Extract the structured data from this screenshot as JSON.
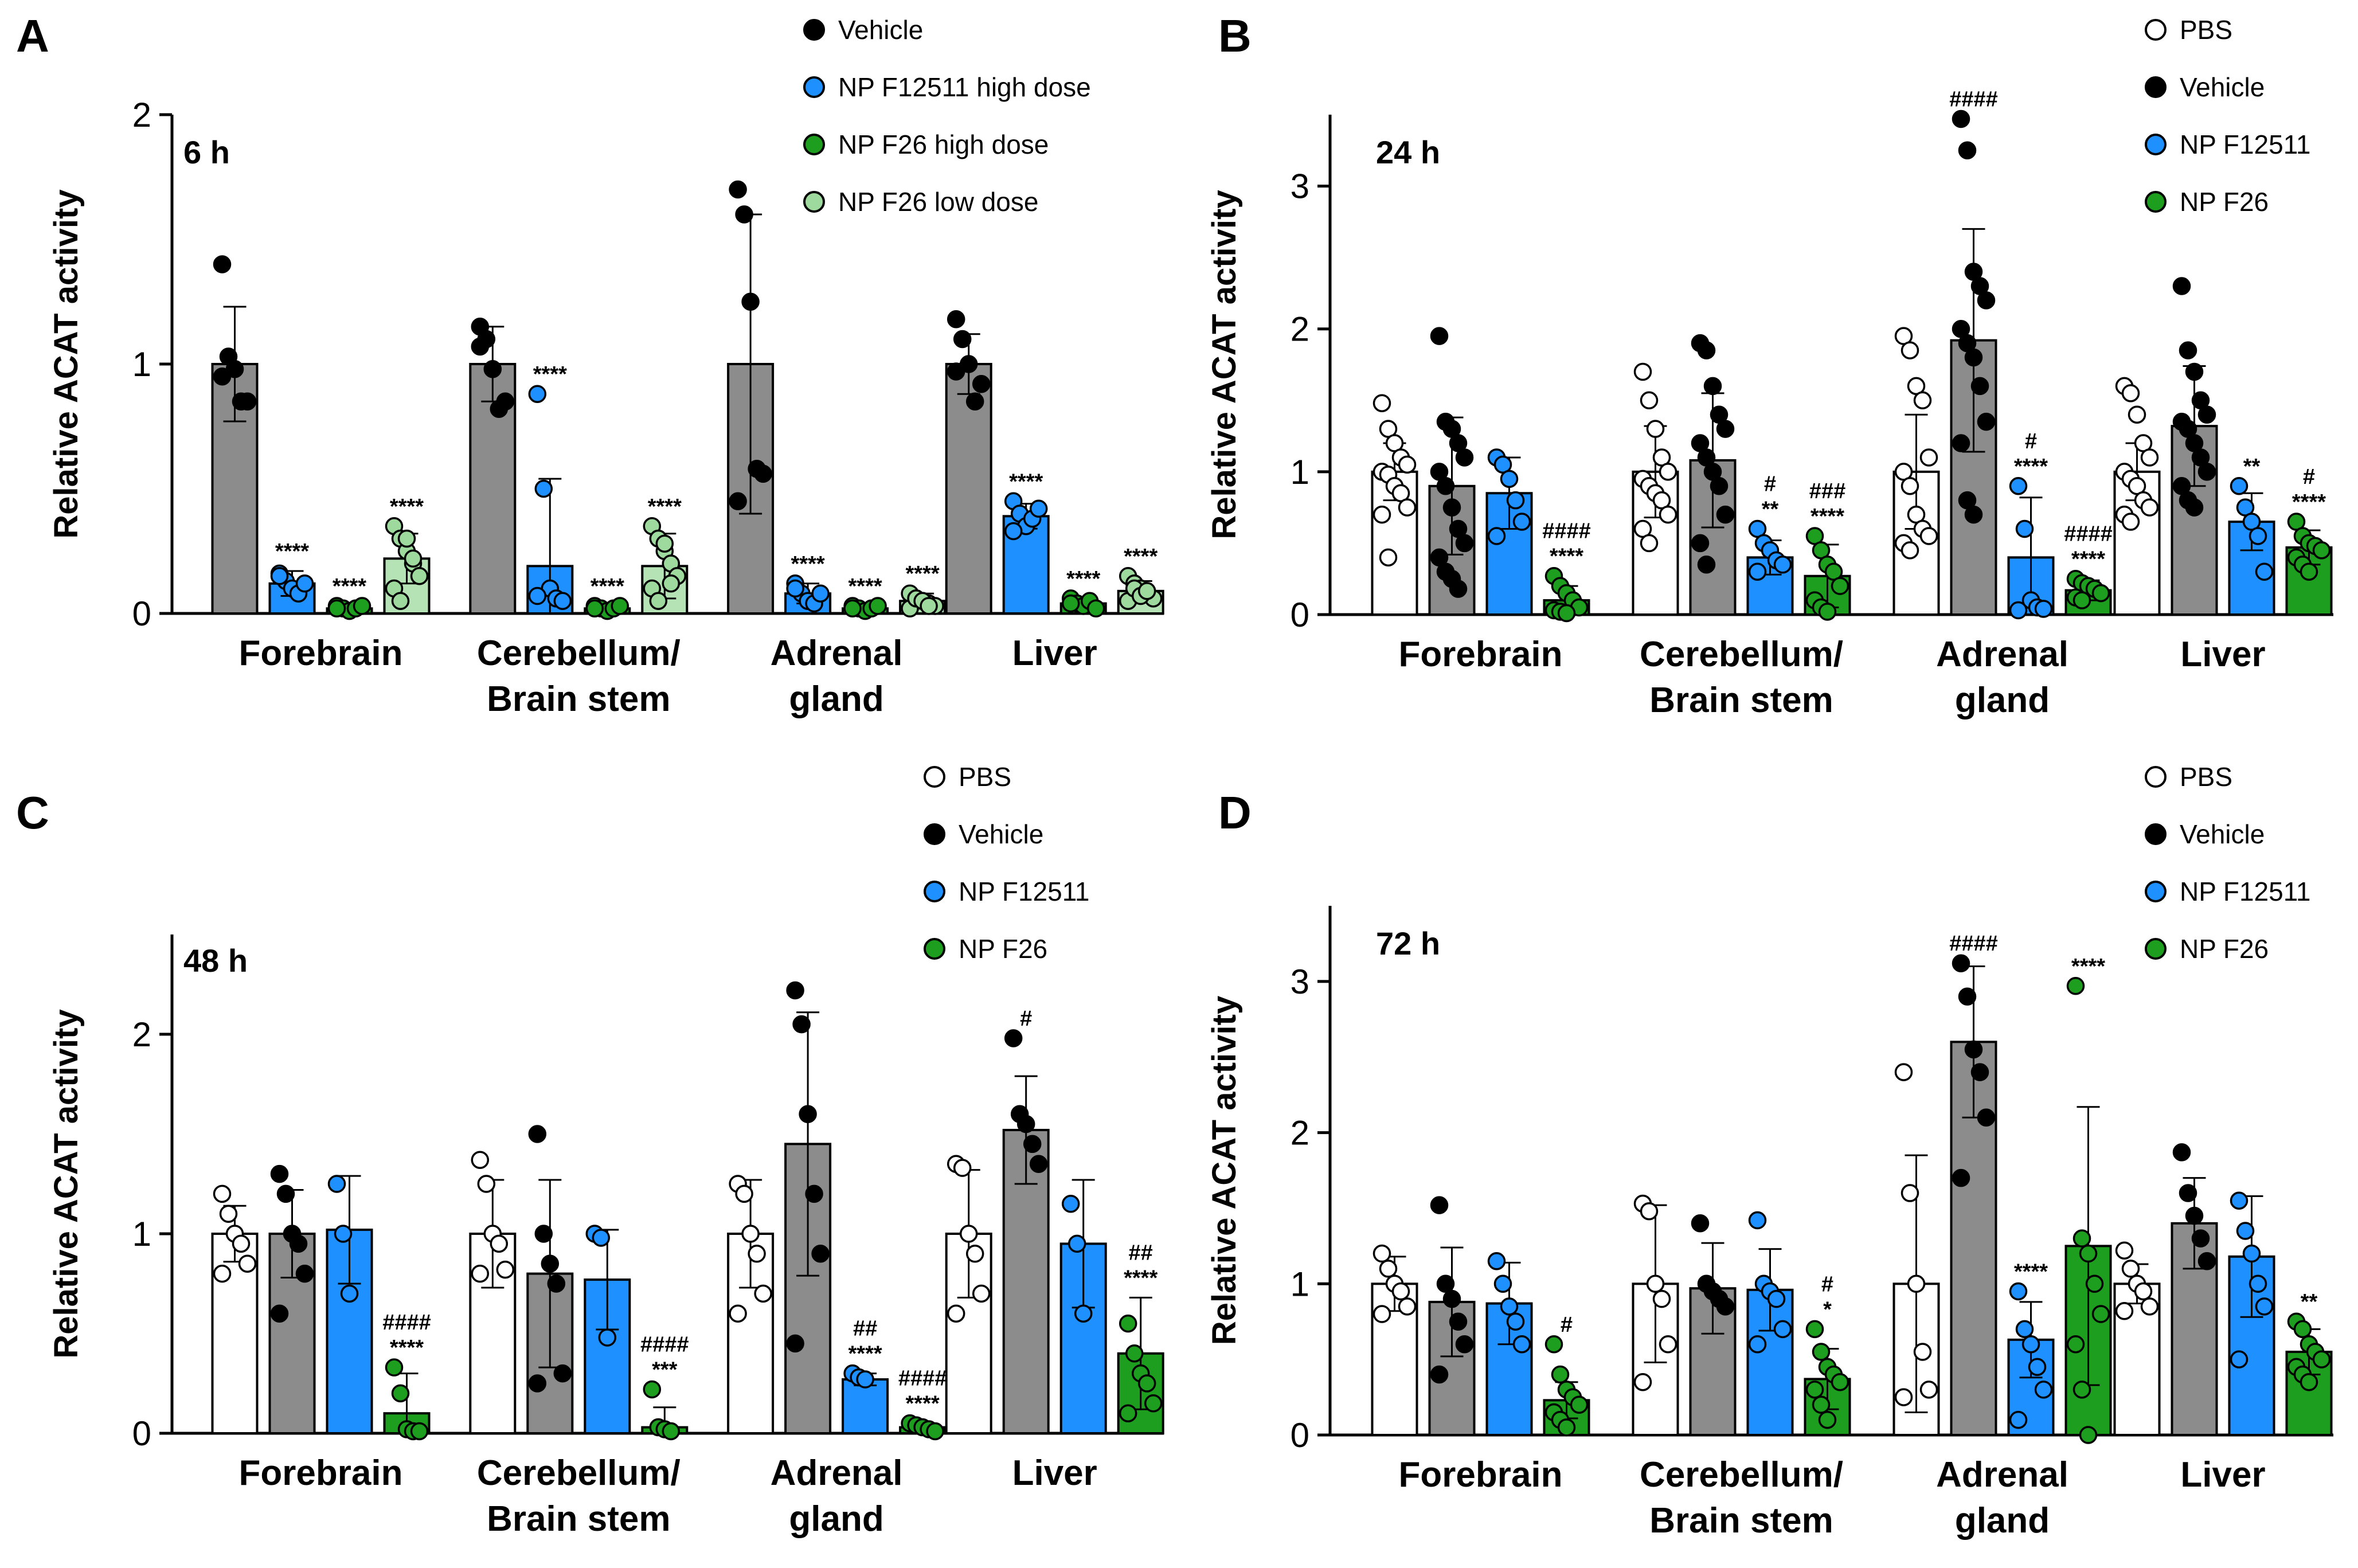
{
  "chart_data": [
    {
      "type": "bar",
      "panel": "A",
      "time_label": "6 h",
      "ylabel": "Relative ACAT activity",
      "ylim": [
        0,
        2
      ],
      "yticks": [
        "0",
        "1",
        "2"
      ],
      "categories": [
        [
          "Forebrain"
        ],
        [
          "Cerebellum/",
          "Brain stem"
        ],
        [
          "Adrenal",
          "gland"
        ],
        [
          "Liver"
        ]
      ],
      "series": [
        {
          "name": "Vehicle",
          "color": "#8c8c8c",
          "marker": "#000000",
          "values": [
            1.0,
            1.0,
            1.0,
            1.0
          ],
          "err": [
            0.23,
            0.15,
            0.6,
            0.12
          ],
          "points": [
            [
              1.4,
              1.03,
              0.98,
              0.85,
              0.85,
              0.95
            ],
            [
              1.15,
              1.1,
              0.98,
              0.82,
              0.85,
              1.07
            ],
            [
              1.7,
              1.6,
              1.25,
              0.58,
              0.56,
              0.45
            ],
            [
              1.18,
              1.1,
              1.0,
              0.85,
              0.92,
              0.97
            ]
          ],
          "sig": [
            "",
            "",
            "",
            ""
          ]
        },
        {
          "name": "NP F12511 high dose",
          "color": "#1e90ff",
          "marker": "#1e90ff",
          "values": [
            0.12,
            0.19,
            0.08,
            0.39
          ],
          "err": [
            0.05,
            0.35,
            0.04,
            0.05
          ],
          "points": [
            [
              0.16,
              0.13,
              0.1,
              0.08,
              0.12,
              0.15
            ],
            [
              0.88,
              0.5,
              0.1,
              0.06,
              0.05,
              0.07
            ],
            [
              0.12,
              0.08,
              0.05,
              0.04,
              0.08,
              0.1
            ],
            [
              0.45,
              0.4,
              0.35,
              0.38,
              0.42,
              0.33
            ]
          ],
          "sig": [
            "****",
            "****",
            "****",
            "****"
          ]
        },
        {
          "name": "NP F26 high dose",
          "color": "#1e9e1e",
          "marker": "#1e9e1e",
          "values": [
            0.02,
            0.02,
            0.02,
            0.04
          ],
          "err": [
            0.01,
            0.01,
            0.01,
            0.02
          ],
          "points": [
            [
              0.03,
              0.02,
              0.01,
              0.02,
              0.03,
              0.02
            ],
            [
              0.03,
              0.02,
              0.01,
              0.02,
              0.03,
              0.02
            ],
            [
              0.03,
              0.02,
              0.01,
              0.02,
              0.03,
              0.02
            ],
            [
              0.06,
              0.04,
              0.03,
              0.05,
              0.02,
              0.04
            ]
          ],
          "sig": [
            "****",
            "****",
            "****",
            "****"
          ]
        },
        {
          "name": "NP F26 low dose",
          "color": "#b6e3b6",
          "marker": "#9ed99e",
          "values": [
            0.22,
            0.19,
            0.05,
            0.09
          ],
          "err": [
            0.1,
            0.13,
            0.03,
            0.04
          ],
          "points": [
            [
              0.35,
              0.3,
              0.25,
              0.2,
              0.15,
              0.1,
              0.05,
              0.3,
              0.22
            ],
            [
              0.35,
              0.3,
              0.25,
              0.2,
              0.15,
              0.1,
              0.05,
              0.28,
              0.12
            ],
            [
              0.08,
              0.06,
              0.05,
              0.04,
              0.03,
              0.02,
              0.06,
              0.05,
              0.03
            ],
            [
              0.15,
              0.12,
              0.1,
              0.08,
              0.06,
              0.05,
              0.1,
              0.07,
              0.09
            ]
          ],
          "sig": [
            "****",
            "****",
            "****",
            "****"
          ]
        }
      ]
    },
    {
      "type": "bar",
      "panel": "B",
      "time_label": "24 h",
      "ylabel": "Relative ACAT activity",
      "ylim": [
        0,
        3.5
      ],
      "yticks": [
        "0",
        "1",
        "2",
        "3"
      ],
      "categories": [
        [
          "Forebrain"
        ],
        [
          "Cerebellum/",
          "Brain stem"
        ],
        [
          "Adrenal",
          "gland"
        ],
        [
          "Liver"
        ]
      ],
      "series": [
        {
          "name": "PBS",
          "color": "#ffffff",
          "marker": "#ffffff",
          "values": [
            1.0,
            1.0,
            1.0,
            1.0
          ],
          "err": [
            0.2,
            0.32,
            0.4,
            0.2
          ],
          "points": [
            [
              1.48,
              1.3,
              1.2,
              1.1,
              1.05,
              1.0,
              0.98,
              0.9,
              0.85,
              0.75,
              0.7,
              0.4
            ],
            [
              1.7,
              1.5,
              1.3,
              1.1,
              1.0,
              0.95,
              0.9,
              0.85,
              0.8,
              0.7,
              0.6,
              0.5
            ],
            [
              1.95,
              1.85,
              1.6,
              1.5,
              1.1,
              1.0,
              0.9,
              0.7,
              0.6,
              0.55,
              0.5,
              0.45
            ],
            [
              1.6,
              1.55,
              1.4,
              1.2,
              1.1,
              1.0,
              0.95,
              0.9,
              0.8,
              0.75,
              0.7,
              0.65
            ]
          ],
          "sig": [
            "",
            "",
            "",
            ""
          ]
        },
        {
          "name": "Vehicle",
          "color": "#8c8c8c",
          "marker": "#000000",
          "values": [
            0.9,
            1.08,
            1.92,
            1.32
          ],
          "err": [
            0.48,
            0.47,
            0.78,
            0.42
          ],
          "points": [
            [
              1.95,
              1.35,
              1.3,
              1.2,
              1.1,
              1.0,
              0.9,
              0.75,
              0.6,
              0.5,
              0.4,
              0.3,
              0.25,
              0.18
            ],
            [
              1.9,
              1.85,
              1.6,
              1.4,
              1.3,
              1.2,
              1.1,
              1.0,
              0.9,
              0.7,
              0.5,
              0.35
            ],
            [
              3.47,
              3.25,
              2.4,
              2.3,
              2.2,
              2.0,
              1.9,
              1.8,
              1.6,
              1.35,
              1.2,
              0.8,
              0.7
            ],
            [
              2.3,
              1.85,
              1.7,
              1.5,
              1.4,
              1.35,
              1.3,
              1.2,
              1.1,
              1.0,
              0.9,
              0.8,
              0.75
            ]
          ],
          "sig": [
            "",
            "",
            "####",
            ""
          ]
        },
        {
          "name": "NP F12511",
          "color": "#1e90ff",
          "marker": "#1e90ff",
          "values": [
            0.85,
            0.4,
            0.4,
            0.65
          ],
          "err": [
            0.25,
            0.12,
            0.42,
            0.2
          ],
          "points": [
            [
              1.1,
              1.05,
              0.95,
              0.8,
              0.65,
              0.55
            ],
            [
              0.6,
              0.5,
              0.45,
              0.38,
              0.35,
              0.3
            ],
            [
              0.9,
              0.6,
              0.1,
              0.05,
              0.04,
              0.03
            ],
            [
              0.9,
              0.75,
              0.65,
              0.55,
              0.3
            ]
          ],
          "sig": [
            "",
            "#\n**",
            "#\n****",
            "**"
          ]
        },
        {
          "name": "NP F26",
          "color": "#1e9e1e",
          "marker": "#1e9e1e",
          "values": [
            0.1,
            0.27,
            0.17,
            0.47
          ],
          "err": [
            0.1,
            0.22,
            0.07,
            0.12
          ],
          "points": [
            [
              0.27,
              0.2,
              0.15,
              0.1,
              0.05,
              0.03,
              0.02,
              0.01
            ],
            [
              0.55,
              0.45,
              0.35,
              0.3,
              0.2,
              0.1,
              0.05,
              0.02
            ],
            [
              0.25,
              0.22,
              0.2,
              0.18,
              0.15,
              0.12,
              0.1
            ],
            [
              0.65,
              0.55,
              0.5,
              0.48,
              0.45,
              0.4,
              0.35,
              0.3
            ]
          ],
          "sig": [
            "####\n****",
            "###\n****",
            "####\n****",
            "#\n****"
          ]
        }
      ]
    },
    {
      "type": "bar",
      "panel": "C",
      "time_label": "48 h",
      "ylabel": "Relative ACAT activity",
      "ylim": [
        0,
        2.5
      ],
      "yticks": [
        "0",
        "1",
        "2"
      ],
      "categories": [
        [
          "Forebrain"
        ],
        [
          "Cerebellum/",
          "Brain stem"
        ],
        [
          "Adrenal",
          "gland"
        ],
        [
          "Liver"
        ]
      ],
      "series": [
        {
          "name": "PBS",
          "color": "#ffffff",
          "marker": "#ffffff",
          "values": [
            1.0,
            1.0,
            1.0,
            1.0
          ],
          "err": [
            0.14,
            0.27,
            0.27,
            0.32
          ],
          "points": [
            [
              1.2,
              1.1,
              1.0,
              0.95,
              0.85,
              0.8
            ],
            [
              1.37,
              1.25,
              1.0,
              0.95,
              0.82,
              0.8
            ],
            [
              1.25,
              1.2,
              1.0,
              0.9,
              0.7,
              0.6
            ],
            [
              1.35,
              1.33,
              1.0,
              0.9,
              0.7,
              0.6
            ]
          ],
          "sig": [
            "",
            "",
            "",
            ""
          ]
        },
        {
          "name": "Vehicle",
          "color": "#8c8c8c",
          "marker": "#000000",
          "values": [
            1.0,
            0.8,
            1.45,
            1.52
          ],
          "err": [
            0.22,
            0.47,
            0.66,
            0.27
          ],
          "points": [
            [
              1.3,
              1.2,
              1.0,
              0.95,
              0.8,
              0.6
            ],
            [
              1.5,
              1.0,
              0.85,
              0.75,
              0.3,
              0.25
            ],
            [
              2.22,
              2.05,
              1.6,
              1.2,
              0.9,
              0.45
            ],
            [
              1.98,
              1.6,
              1.55,
              1.45,
              1.35
            ]
          ],
          "sig": [
            "",
            "",
            "",
            "#"
          ]
        },
        {
          "name": "NP F12511",
          "color": "#1e90ff",
          "marker": "#1e90ff",
          "values": [
            1.02,
            0.77,
            0.27,
            0.95
          ],
          "err": [
            0.27,
            0.25,
            0.03,
            0.32
          ],
          "points": [
            [
              1.25,
              1.0,
              0.7
            ],
            [
              1.0,
              0.98,
              0.48
            ],
            [
              0.3,
              0.28,
              0.27
            ],
            [
              1.15,
              0.95,
              0.6
            ]
          ],
          "sig": [
            "",
            "",
            "##\n****",
            ""
          ]
        },
        {
          "name": "NP F26",
          "color": "#1e9e1e",
          "marker": "#1e9e1e",
          "values": [
            0.1,
            0.03,
            0.03,
            0.4
          ],
          "err": [
            0.2,
            0.1,
            0.02,
            0.28
          ],
          "points": [
            [
              0.33,
              0.2,
              0.02,
              0.01,
              0.01
            ],
            [
              0.22,
              0.03,
              0.02,
              0.01
            ],
            [
              0.05,
              0.04,
              0.03,
              0.02,
              0.01
            ],
            [
              0.55,
              0.4,
              0.3,
              0.25,
              0.15,
              0.1
            ]
          ],
          "sig": [
            "####\n****",
            "####\n***",
            "####\n****",
            "##\n****"
          ]
        }
      ]
    },
    {
      "type": "bar",
      "panel": "D",
      "time_label": "72 h",
      "ylabel": "Relative ACAT activity",
      "ylim": [
        0,
        3.5
      ],
      "yticks": [
        "0",
        "1",
        "2",
        "3"
      ],
      "categories": [
        [
          "Forebrain"
        ],
        [
          "Cerebellum/",
          "Brain stem"
        ],
        [
          "Adrenal",
          "gland"
        ],
        [
          "Liver"
        ]
      ],
      "series": [
        {
          "name": "PBS",
          "color": "#ffffff",
          "marker": "#ffffff",
          "values": [
            1.0,
            1.0,
            1.0,
            1.0
          ],
          "err": [
            0.18,
            0.52,
            0.85,
            0.13
          ],
          "points": [
            [
              1.2,
              1.1,
              1.0,
              0.95,
              0.85,
              0.8
            ],
            [
              1.53,
              1.48,
              1.0,
              0.9,
              0.6,
              0.35
            ],
            [
              2.4,
              1.6,
              1.0,
              0.55,
              0.3,
              0.25
            ],
            [
              1.22,
              1.1,
              1.0,
              0.95,
              0.85,
              0.82
            ]
          ],
          "sig": [
            "",
            "",
            "",
            ""
          ]
        },
        {
          "name": "Vehicle",
          "color": "#8c8c8c",
          "marker": "#000000",
          "values": [
            0.88,
            0.97,
            2.6,
            1.4
          ],
          "err": [
            0.36,
            0.3,
            0.5,
            0.3
          ],
          "points": [
            [
              1.52,
              1.0,
              0.9,
              0.75,
              0.6,
              0.4
            ],
            [
              1.4,
              1.0,
              0.95,
              0.9,
              0.85
            ],
            [
              3.12,
              2.9,
              2.55,
              2.4,
              2.1,
              1.7
            ],
            [
              1.87,
              1.6,
              1.45,
              1.3,
              1.15
            ]
          ],
          "sig": [
            "",
            "",
            "####",
            ""
          ]
        },
        {
          "name": "NP F12511",
          "color": "#1e90ff",
          "marker": "#1e90ff",
          "values": [
            0.87,
            0.96,
            0.63,
            1.18
          ],
          "err": [
            0.27,
            0.27,
            0.25,
            0.4
          ],
          "points": [
            [
              1.15,
              1.0,
              0.85,
              0.75,
              0.6
            ],
            [
              1.42,
              1.0,
              0.95,
              0.9,
              0.7,
              0.6
            ],
            [
              0.95,
              0.7,
              0.6,
              0.45,
              0.3,
              0.1
            ],
            [
              1.55,
              1.35,
              1.2,
              1.0,
              0.85,
              0.5
            ]
          ],
          "sig": [
            "",
            "",
            "****",
            ""
          ]
        },
        {
          "name": "NP F26",
          "color": "#1e9e1e",
          "marker": "#1e9e1e",
          "values": [
            0.23,
            0.37,
            1.25,
            0.55
          ],
          "err": [
            0.12,
            0.2,
            0.92,
            0.15
          ],
          "points": [
            [
              0.6,
              0.4,
              0.3,
              0.25,
              0.2,
              0.15,
              0.1,
              0.05
            ],
            [
              0.7,
              0.55,
              0.45,
              0.4,
              0.35,
              0.3,
              0.2,
              0.1
            ],
            [
              2.97,
              1.3,
              1.2,
              1.0,
              0.8,
              0.6,
              0.3,
              0.0
            ],
            [
              0.75,
              0.7,
              0.6,
              0.55,
              0.5,
              0.45,
              0.4,
              0.35
            ]
          ],
          "sig": [
            "#",
            "#\n*",
            "****",
            "**"
          ]
        }
      ]
    }
  ]
}
